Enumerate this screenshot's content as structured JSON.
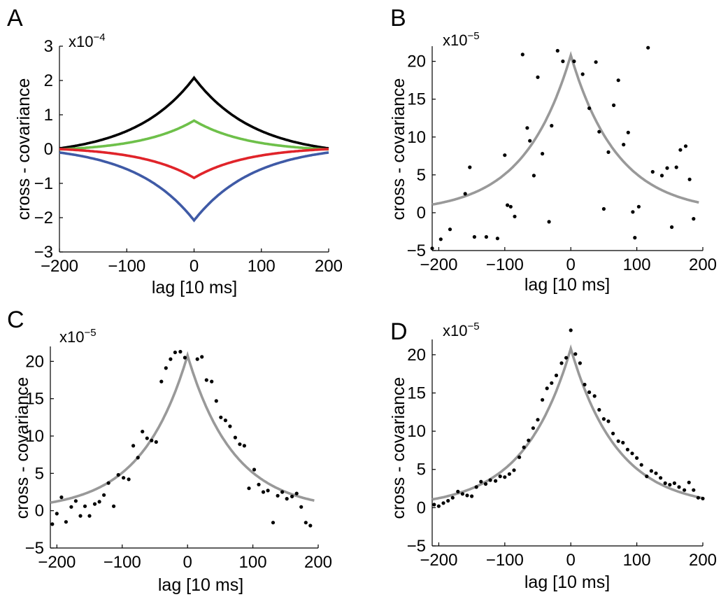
{
  "figure": {
    "panels": [
      "A",
      "B",
      "C",
      "D"
    ]
  },
  "chart_data": [
    {
      "panel": "A",
      "type": "line",
      "xlabel": "lag [10 ms]",
      "ylabel": "cross - covariance",
      "scale_label": "x10",
      "scale_exp": "-4",
      "xlim": [
        -200,
        200
      ],
      "ylim": [
        -3,
        3
      ],
      "xticks": [
        -200,
        -100,
        0,
        100,
        200
      ],
      "yticks": [
        -3,
        -2,
        -1,
        0,
        1,
        2,
        3
      ],
      "series": [
        {
          "name": "black",
          "color": "#000000",
          "peak": 2.08,
          "edge": 0.02,
          "tau": 89
        },
        {
          "name": "green",
          "color": "#6ec04a",
          "peak": 0.83,
          "edge": -0.01,
          "tau": 80
        },
        {
          "name": "red",
          "color": "#e0242a",
          "peak": -0.84,
          "edge": 0.0,
          "tau": 80
        },
        {
          "name": "blue",
          "color": "#3f5aa6",
          "peak": -2.08,
          "edge": -0.1,
          "tau": 89
        }
      ]
    },
    {
      "panel": "B",
      "type": "scatter",
      "xlabel": "lag [10 ms]",
      "ylabel": "cross - covariance",
      "scale_label": "x10",
      "scale_exp": "-5",
      "xlim": [
        -210,
        200
      ],
      "ylim": [
        -5,
        22
      ],
      "xticks": [
        -200,
        -100,
        0,
        100,
        200
      ],
      "yticks": [
        -5,
        0,
        5,
        10,
        15,
        20
      ],
      "fit": {
        "color": "#999999",
        "peak": 20.8,
        "tau": 71,
        "range": [
          -210,
          195
        ]
      },
      "points": {
        "x": [
          -210,
          -197,
          -183,
          -160,
          -153,
          -146,
          -128,
          -111,
          -100,
          -96,
          -91,
          -85,
          -73,
          -66,
          -62,
          -56,
          -50,
          -43,
          -33,
          -29,
          -20,
          -12,
          5,
          18,
          28,
          38,
          43,
          50,
          57,
          65,
          72,
          80,
          87,
          94,
          97,
          103,
          117,
          124,
          138,
          146,
          153,
          160,
          166,
          174,
          180,
          186
        ],
        "y": [
          -4.7,
          -3.5,
          -2.2,
          2.5,
          6.0,
          -3.2,
          -3.2,
          -3.4,
          7.6,
          1.0,
          0.8,
          -0.5,
          20.9,
          11.2,
          9.5,
          4.9,
          17.9,
          7.8,
          -1.2,
          11.5,
          21.4,
          20.0,
          20.0,
          18.3,
          13.8,
          19.9,
          10.7,
          0.5,
          8.0,
          14.2,
          17.5,
          9.0,
          10.6,
          0.1,
          -3.3,
          0.8,
          21.8,
          5.4,
          4.9,
          5.9,
          -1.9,
          6.0,
          8.3,
          8.8,
          4.4,
          -0.8
        ]
      }
    },
    {
      "panel": "C",
      "type": "scatter",
      "xlabel": "lag [10 ms]",
      "ylabel": "cross - covariance",
      "scale_label": "x10",
      "scale_exp": "-5",
      "xlim": [
        -210,
        200
      ],
      "ylim": [
        -5,
        22
      ],
      "xticks": [
        -200,
        -100,
        0,
        100,
        200
      ],
      "yticks": [
        -5,
        0,
        5,
        10,
        15,
        20
      ],
      "fit": {
        "color": "#999999",
        "peak": 20.8,
        "tau": 71,
        "range": [
          -210,
          195
        ]
      },
      "points": {
        "x": [
          -207,
          -200,
          -193,
          -186,
          -178,
          -171,
          -164,
          -157,
          -150,
          -142,
          -135,
          -128,
          -121,
          -113,
          -106,
          -98,
          -90,
          -83,
          -76,
          -69,
          -62,
          -55,
          -48,
          -40,
          -33,
          -26,
          -19,
          -11,
          -4,
          15,
          22,
          29,
          37,
          44,
          51,
          58,
          65,
          73,
          80,
          87,
          94,
          102,
          109,
          116,
          123,
          131,
          138,
          145,
          152,
          160,
          167,
          174,
          181,
          188
        ],
        "y": [
          -1.8,
          -0.4,
          1.8,
          -1.5,
          0.5,
          1.3,
          -0.7,
          0.6,
          -0.7,
          0.9,
          1.2,
          2.1,
          3.7,
          0.6,
          4.8,
          4.4,
          4.2,
          8.7,
          7.1,
          10.6,
          9.7,
          9.4,
          9.2,
          17.3,
          19.1,
          20.3,
          21.2,
          21.3,
          20.5,
          20.3,
          20.6,
          17.5,
          17.3,
          14.7,
          12.5,
          12.1,
          11.3,
          9.8,
          8.9,
          8.7,
          3.0,
          5.5,
          3.5,
          2.5,
          2.7,
          -1.6,
          2.0,
          2.5,
          1.6,
          1.9,
          2.3,
          0.5,
          -1.6,
          -2.0
        ]
      }
    },
    {
      "panel": "D",
      "type": "scatter",
      "xlabel": "lag [10 ms]",
      "ylabel": "cross - covariance",
      "scale_label": "x10",
      "scale_exp": "-5",
      "xlim": [
        -210,
        200
      ],
      "ylim": [
        -5,
        22
      ],
      "xticks": [
        -200,
        -100,
        0,
        100,
        200
      ],
      "yticks": [
        -5,
        0,
        5,
        10,
        15,
        20
      ],
      "fit": {
        "color": "#999999",
        "peak": 20.8,
        "tau": 71,
        "range": [
          -210,
          200
        ]
      },
      "points": {
        "x": [
          -207,
          -200,
          -193,
          -186,
          -179,
          -171,
          -164,
          -157,
          -150,
          -143,
          -136,
          -129,
          -122,
          -114,
          -107,
          -100,
          -93,
          -86,
          -78,
          -71,
          -64,
          -57,
          -50,
          -43,
          -36,
          -29,
          -22,
          -14,
          -7,
          0,
          7,
          14,
          21,
          28,
          36,
          43,
          50,
          57,
          64,
          72,
          79,
          86,
          93,
          100,
          107,
          115,
          122,
          129,
          136,
          143,
          150,
          157,
          164,
          172,
          179,
          186,
          193,
          200
        ],
        "y": [
          0.4,
          0.2,
          0.6,
          0.9,
          1.3,
          2.1,
          1.8,
          1.6,
          1.5,
          2.7,
          3.4,
          3.1,
          3.6,
          3.5,
          4.1,
          4.0,
          4.4,
          4.9,
          6.6,
          7.9,
          8.8,
          10.4,
          11.5,
          14.1,
          15.6,
          16.3,
          17.3,
          18.9,
          19.6,
          23.2,
          20.1,
          18.9,
          16.1,
          15.1,
          14.6,
          12.8,
          11.6,
          11.3,
          9.7,
          8.7,
          8.5,
          7.6,
          7.1,
          6.5,
          5.6,
          4.1,
          4.8,
          4.5,
          3.9,
          3.2,
          3.0,
          3.2,
          2.7,
          2.3,
          3.3,
          2.3,
          1.3,
          1.2
        ]
      }
    }
  ]
}
